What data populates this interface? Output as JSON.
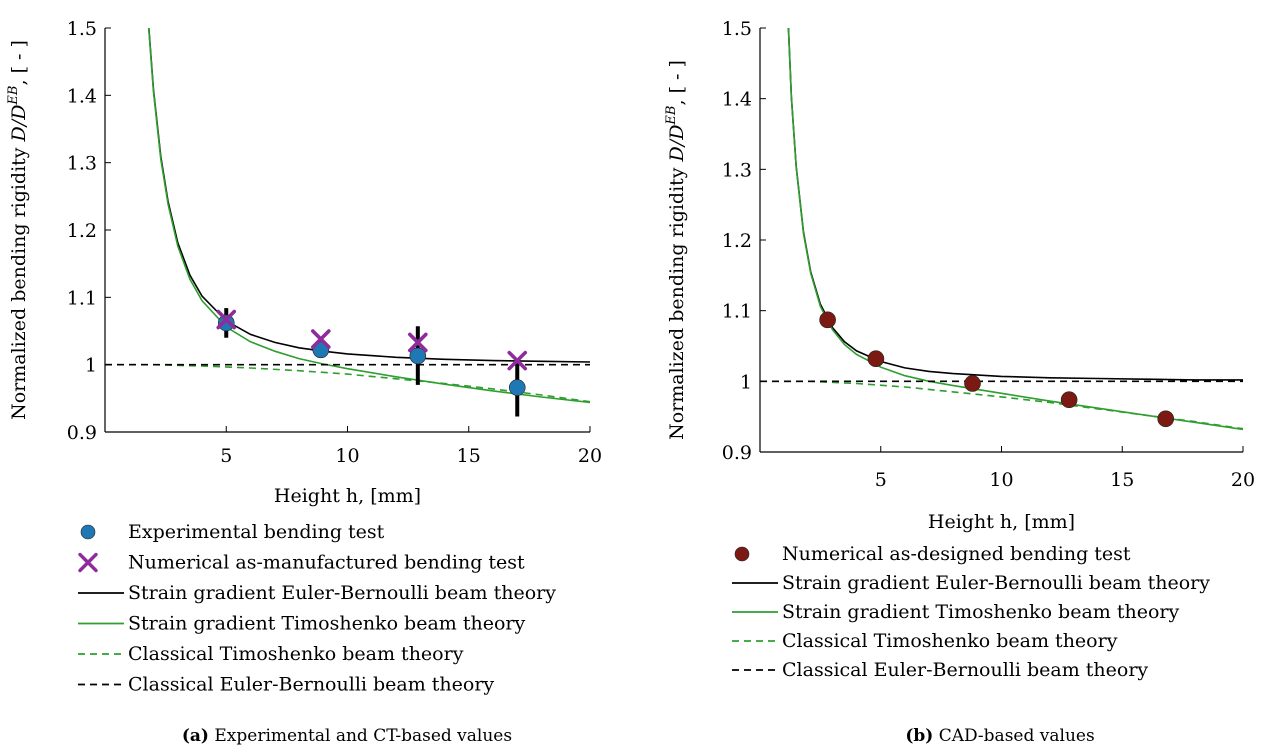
{
  "chart_data": [
    {
      "type": "line",
      "subfigure_tag": "(a)",
      "caption": "Experimental and CT-based values",
      "xlabel": "Height h, [mm]",
      "ylabel_main": "Normalized bending rigidity ",
      "ylabel_math": "D/D",
      "ylabel_sup": "EB",
      "ylabel_unit": ", [ - ]",
      "xlim": [
        0,
        20
      ],
      "ylim": [
        0.9,
        1.5
      ],
      "xticks": [
        5,
        10,
        15,
        20
      ],
      "yticks": [
        0.9,
        1.0,
        1.1,
        1.2,
        1.3,
        1.4,
        1.5
      ],
      "legend_position": "below",
      "series": [
        {
          "name": "Experimental bending test",
          "kind": "marker-circle",
          "color": "#1f77b4",
          "x": [
            5,
            8.9,
            12.9,
            17
          ],
          "y": [
            1.062,
            1.022,
            1.013,
            0.966
          ],
          "err_low": [
            1.04,
            1.018,
            0.97,
            0.923
          ],
          "err_high": [
            1.084,
            1.026,
            1.057,
            1.009
          ]
        },
        {
          "name": "Numerical as-manufactured bending test",
          "kind": "marker-x",
          "color": "#8e2c9c",
          "x": [
            5,
            8.9,
            12.9,
            17
          ],
          "y": [
            1.067,
            1.038,
            1.033,
            1.006
          ]
        },
        {
          "name": "Strain gradient Euler-Bernoulli beam theory",
          "kind": "line-solid",
          "color": "#000000",
          "x": [
            1.6,
            1.8,
            2,
            2.3,
            2.6,
            3,
            3.5,
            4,
            5,
            6,
            7,
            8,
            9,
            10,
            12,
            14,
            16,
            18,
            20
          ],
          "y": [
            1.637,
            1.503,
            1.408,
            1.309,
            1.242,
            1.181,
            1.133,
            1.102,
            1.065,
            1.045,
            1.033,
            1.025,
            1.02,
            1.016,
            1.011,
            1.008,
            1.006,
            1.005,
            1.004
          ]
        },
        {
          "name": "Strain gradient Timoshenko beam theory",
          "kind": "line-solid",
          "color": "#2e9e2e",
          "x": [
            1.6,
            1.8,
            2,
            2.3,
            2.6,
            3,
            3.5,
            4,
            5,
            6,
            7,
            8,
            9,
            10,
            12,
            14,
            16,
            18,
            20
          ],
          "y": [
            1.634,
            1.5,
            1.405,
            1.305,
            1.238,
            1.176,
            1.127,
            1.095,
            1.056,
            1.034,
            1.02,
            1.009,
            1.001,
            0.994,
            0.982,
            0.971,
            0.961,
            0.952,
            0.944
          ]
        },
        {
          "name": "Classical Timoshenko beam theory",
          "kind": "line-dashed",
          "color": "#2e9e2e",
          "x": [
            0,
            2,
            4,
            6,
            8,
            10,
            12,
            14,
            16,
            18,
            20
          ],
          "y": [
            1.0,
            1.0,
            0.998,
            0.995,
            0.991,
            0.986,
            0.979,
            0.972,
            0.964,
            0.955,
            0.945
          ]
        },
        {
          "name": "Classical Euler-Bernoulli beam theory",
          "kind": "line-dashed",
          "color": "#000000",
          "x": [
            0,
            20
          ],
          "y": [
            1.0,
            1.0
          ]
        }
      ]
    },
    {
      "type": "line",
      "subfigure_tag": "(b)",
      "caption": "CAD-based values",
      "xlabel": "Height h, [mm]",
      "ylabel_main": "Normalized bending rigidity ",
      "ylabel_math": "D/D",
      "ylabel_sup": "EB",
      "ylabel_unit": ", [ - ]",
      "xlim": [
        0,
        20
      ],
      "ylim": [
        0.9,
        1.5
      ],
      "xticks": [
        5,
        10,
        15,
        20
      ],
      "yticks": [
        0.9,
        1.0,
        1.1,
        1.2,
        1.3,
        1.4,
        1.5
      ],
      "legend_position": "below",
      "series": [
        {
          "name": "Numerical as-designed bending test",
          "kind": "marker-circle",
          "color": "#7b1a12",
          "x": [
            2.8,
            4.8,
            8.8,
            12.8,
            16.8
          ],
          "y": [
            1.087,
            1.032,
            0.997,
            0.974,
            0.947
          ]
        },
        {
          "name": "Strain gradient Euler-Bernoulli beam theory",
          "kind": "line-solid",
          "color": "#000000",
          "x": [
            1.1,
            1.3,
            1.5,
            1.8,
            2.1,
            2.5,
            3,
            3.5,
            4,
            5,
            6,
            7,
            8,
            10,
            12,
            14,
            16,
            18,
            20
          ],
          "y": [
            1.562,
            1.402,
            1.304,
            1.211,
            1.155,
            1.109,
            1.076,
            1.056,
            1.043,
            1.028,
            1.019,
            1.014,
            1.011,
            1.007,
            1.005,
            1.004,
            1.003,
            1.002,
            1.002
          ]
        },
        {
          "name": "Strain gradient Timoshenko beam theory",
          "kind": "line-solid",
          "color": "#2e9e2e",
          "x": [
            1.1,
            1.3,
            1.5,
            1.8,
            2.1,
            2.5,
            3,
            3.5,
            4,
            5,
            6,
            7,
            8,
            10,
            12,
            14,
            16,
            18,
            20
          ],
          "y": [
            1.562,
            1.401,
            1.303,
            1.209,
            1.153,
            1.106,
            1.073,
            1.052,
            1.038,
            1.02,
            1.008,
            1.0,
            0.994,
            0.983,
            0.972,
            0.962,
            0.952,
            0.942,
            0.932
          ]
        },
        {
          "name": "Classical Timoshenko beam theory",
          "kind": "line-dashed",
          "color": "#2e9e2e",
          "x": [
            0,
            2,
            4,
            6,
            8,
            10,
            12,
            14,
            16,
            18,
            20
          ],
          "y": [
            1.0,
            1.0,
            0.997,
            0.992,
            0.985,
            0.978,
            0.97,
            0.961,
            0.952,
            0.943,
            0.933
          ]
        },
        {
          "name": "Classical Euler-Bernoulli beam theory",
          "kind": "line-dashed",
          "color": "#000000",
          "x": [
            0,
            20
          ],
          "y": [
            1.0,
            1.0
          ]
        }
      ]
    }
  ]
}
